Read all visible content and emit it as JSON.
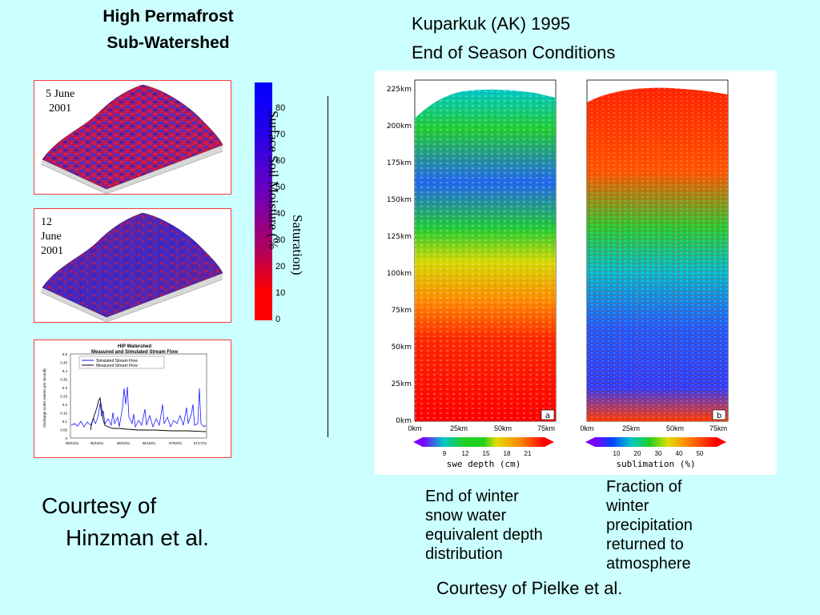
{
  "left_title": {
    "line1": "High Permafrost",
    "line2": "Sub-Watershed"
  },
  "right_title": {
    "line1": "Kuparkuk (AK) 1995",
    "line2": "End of Season Conditions"
  },
  "panels": {
    "june5": {
      "line1": "5 June",
      "line2": "2001"
    },
    "june12": {
      "line1": "12",
      "line2": "June",
      "line3": "2001"
    },
    "hydrograph": {
      "title1": "HiP Watershed",
      "title2": "Measured and Simulated Stream Flow",
      "legend_simulated": "Simulated Stream Flow",
      "legend_measured": "Measured Stream Flow",
      "y_label": "Discharge (cubic meters per second)",
      "y_ticks": [
        "0.5",
        "0.45",
        "0.4",
        "0.35",
        "0.3",
        "0.25",
        "0.2",
        "0.15",
        "0.1",
        "0.05",
        "0"
      ],
      "x_ticks": [
        "05/01/01",
        "05/16/01",
        "06/01/01",
        "06/16/01",
        "07/02/01",
        "07/17/01"
      ],
      "colors": {
        "simulated": "#1a1aff",
        "measured": "#000000"
      }
    }
  },
  "colorbar": {
    "ticks": [
      "80",
      "70",
      "60",
      "50",
      "40",
      "30",
      "20",
      "10",
      "0"
    ],
    "title_line1": "Surface Soil Moisture (% ",
    "title_line2": "Saturation)",
    "colors": {
      "top": "#0000ff",
      "bottom": "#ff0000"
    }
  },
  "maps": {
    "y_ticks": [
      "225km",
      "200km",
      "175km",
      "150km",
      "125km",
      "100km",
      "75km",
      "50km",
      "25km",
      "0km"
    ],
    "x_ticks": [
      "0km",
      "25km",
      "50km",
      "75km"
    ],
    "panel_a": {
      "letter": "a",
      "scale_ticks": [
        "9",
        "12",
        "15",
        "18",
        "21"
      ],
      "scale_label": "swe depth (cm)",
      "scale_colors": [
        "#7b00ff",
        "#00c8c8",
        "#22d022",
        "#dddd00",
        "#ff8800",
        "#ff0000"
      ]
    },
    "panel_b": {
      "letter": "b",
      "scale_ticks": [
        "10",
        "20",
        "30",
        "40",
        "50"
      ],
      "scale_label": "sublimation (%)",
      "scale_colors": [
        "#7b00ff",
        "#0044ff",
        "#00c8c8",
        "#22d022",
        "#dddd00",
        "#ff8800",
        "#ff0000"
      ]
    }
  },
  "captions": {
    "left": [
      "End of winter",
      "snow water",
      "equivalent depth",
      "distribution"
    ],
    "right": [
      "Fraction of",
      "winter",
      "precipitation",
      "returned to",
      "atmosphere"
    ]
  },
  "courtesy_left": {
    "line1": "Courtesy of",
    "line2": "Hinzman et al."
  },
  "courtesy_right": "Courtesy of Pielke et al."
}
